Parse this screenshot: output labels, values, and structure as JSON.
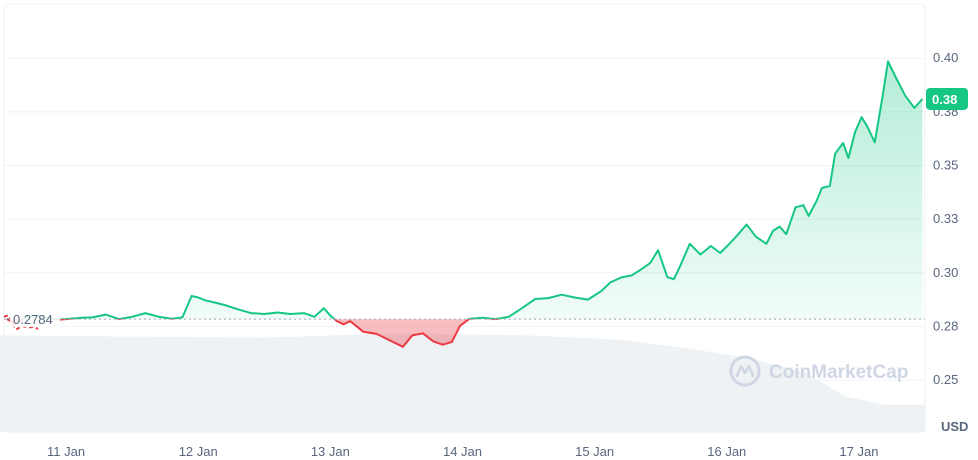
{
  "chart_data": {
    "type": "area",
    "unit": "USD",
    "baseline": {
      "value": 0.27842,
      "label": "0.2784"
    },
    "current_price": {
      "value": 0.381,
      "label": "0.38"
    },
    "y_ticks": [
      {
        "value": 0.25,
        "label": "0.25"
      },
      {
        "value": 0.275,
        "label": "0.28"
      },
      {
        "value": 0.3,
        "label": "0.30"
      },
      {
        "value": 0.325,
        "label": "0.33"
      },
      {
        "value": 0.35,
        "label": "0.35"
      },
      {
        "value": 0.375,
        "label": "0.38"
      },
      {
        "value": 0.4,
        "label": "0.40"
      }
    ],
    "x_ticks": [
      {
        "day": 1,
        "label": "11 Jan"
      },
      {
        "day": 2,
        "label": "12 Jan"
      },
      {
        "day": 3,
        "label": "13 Jan"
      },
      {
        "day": 4,
        "label": "14 Jan"
      },
      {
        "day": 5,
        "label": "15 Jan"
      },
      {
        "day": 6,
        "label": "16 Jan"
      },
      {
        "day": 7,
        "label": "17 Jan"
      }
    ],
    "series": [
      {
        "x": [
          0.55,
          0.62,
          0.7,
          0.78,
          0.86,
          0.95,
          1.03,
          1.12,
          1.2,
          1.3,
          1.4,
          1.5,
          1.6,
          1.7,
          1.8,
          1.88,
          1.95,
          2.0,
          2.05,
          2.12,
          2.2,
          2.3,
          2.4,
          2.5,
          2.6,
          2.7,
          2.8,
          2.88,
          2.95,
          3.0,
          3.05,
          3.1,
          3.15,
          3.25,
          3.35,
          3.45,
          3.55,
          3.62,
          3.7,
          3.78,
          3.85,
          3.92,
          3.98,
          4.05,
          4.15,
          4.25,
          4.35,
          4.45,
          4.55,
          4.65,
          4.75,
          4.85,
          4.95,
          5.05,
          5.12,
          5.2,
          5.28,
          5.35,
          5.42,
          5.48,
          5.55,
          5.6,
          5.65,
          5.72,
          5.8,
          5.88,
          5.95,
          6.02,
          6.08,
          6.15,
          6.22,
          6.3,
          6.35,
          6.4,
          6.45,
          6.52,
          6.58,
          6.62,
          6.68,
          6.72,
          6.78,
          6.82,
          6.88,
          6.92,
          6.97,
          7.02,
          7.06,
          7.12,
          7.18,
          7.22,
          7.28,
          7.35,
          7.42,
          7.48
        ],
        "values": [
          0.2785,
          0.2762,
          0.2795,
          0.28,
          0.2788,
          0.2782,
          0.2786,
          0.279,
          0.2792,
          0.2805,
          0.2784,
          0.2795,
          0.2812,
          0.2795,
          0.2786,
          0.2792,
          0.2892,
          0.2885,
          0.2872,
          0.2862,
          0.285,
          0.283,
          0.2812,
          0.2808,
          0.2815,
          0.2808,
          0.2812,
          0.2795,
          0.2835,
          0.28,
          0.2775,
          0.276,
          0.2775,
          0.2725,
          0.2715,
          0.2685,
          0.2655,
          0.2708,
          0.2718,
          0.268,
          0.2665,
          0.2678,
          0.2752,
          0.2785,
          0.279,
          0.2784,
          0.2795,
          0.2835,
          0.2878,
          0.2882,
          0.2898,
          0.2885,
          0.2875,
          0.2915,
          0.2955,
          0.2978,
          0.2988,
          0.3015,
          0.3045,
          0.3105,
          0.298,
          0.297,
          0.3035,
          0.3135,
          0.3085,
          0.3125,
          0.3092,
          0.3135,
          0.3175,
          0.3225,
          0.3168,
          0.3135,
          0.3195,
          0.3215,
          0.318,
          0.3305,
          0.3315,
          0.3265,
          0.3335,
          0.3395,
          0.3405,
          0.3555,
          0.3605,
          0.3535,
          0.3655,
          0.3725,
          0.3685,
          0.3608,
          0.3825,
          0.3985,
          0.391,
          0.3825,
          0.3768,
          0.381
        ]
      }
    ],
    "xlim": [
      0.5,
      7.5
    ],
    "ylim": [
      0.2258,
      0.4178
    ],
    "colors": {
      "up_line": "#16c784",
      "down_line": "#ea3943",
      "up_fill": "#16c784",
      "down_fill": "#ea3943",
      "grid": "#eff2f5",
      "baseline": "#a1a7bb",
      "badge": "#16c784",
      "volume": "#eff2f5"
    },
    "grid": true,
    "watermark": "CoinMarketCap"
  }
}
